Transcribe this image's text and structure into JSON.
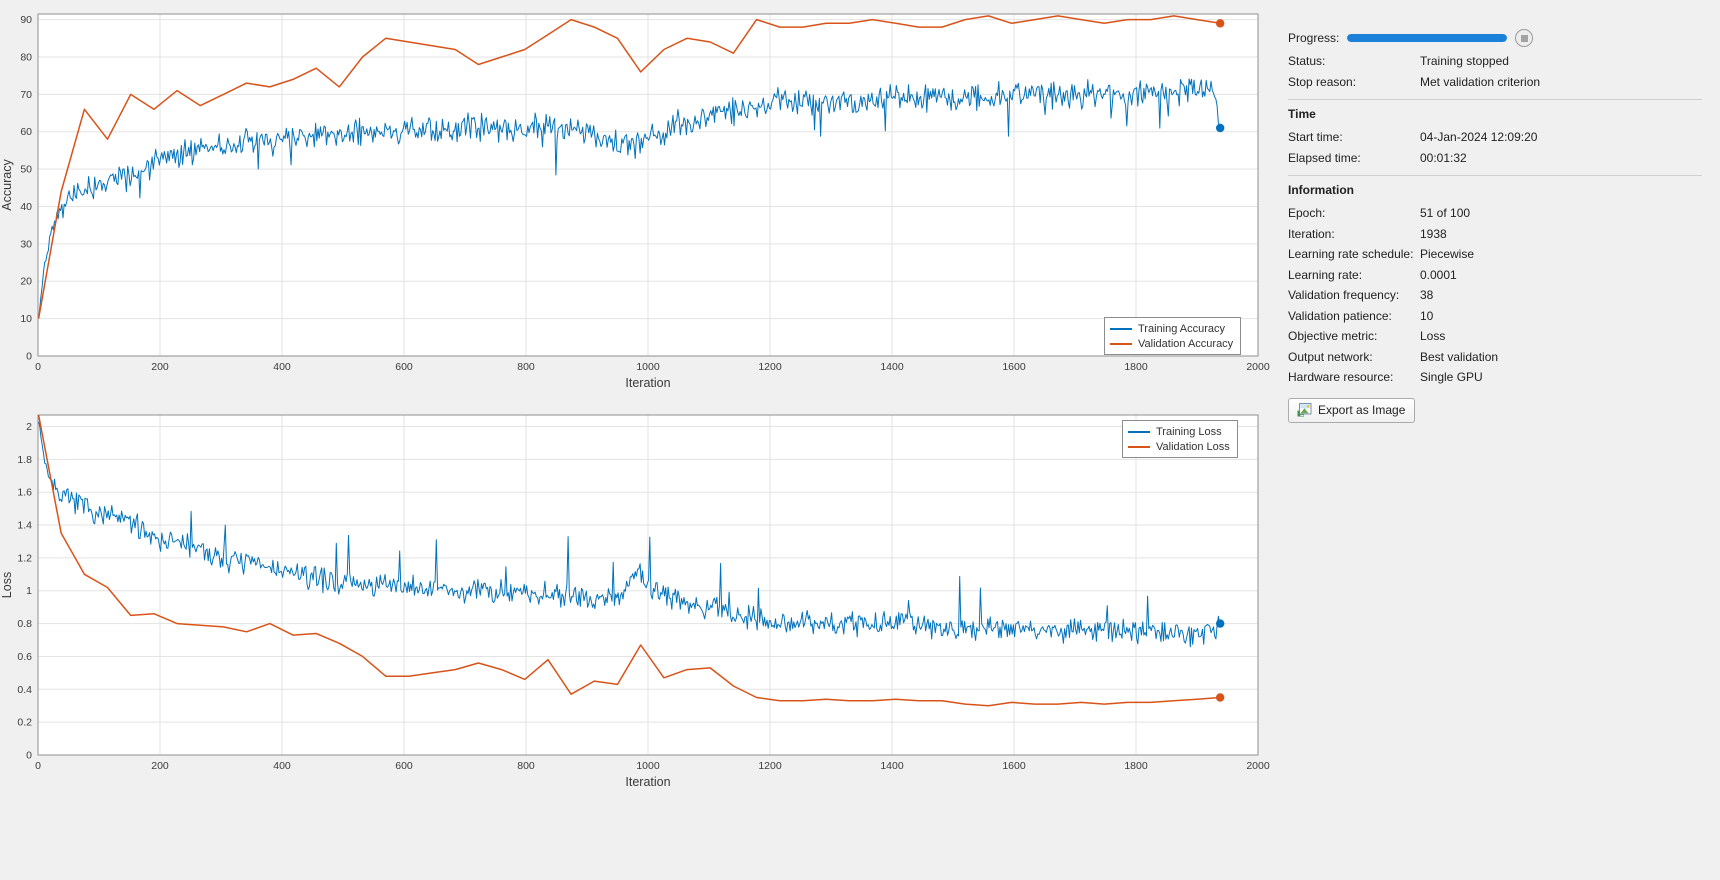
{
  "colors": {
    "training": "#0072BD",
    "validation": "#D95319",
    "progress": "#1a80d8",
    "grid": "#e3e3e3",
    "axis_box": "#8f8f8f",
    "tick_text": "#3c3c3c",
    "plot_bg": "#ffffff",
    "window_bg": "#f0f0f0"
  },
  "sidebar": {
    "progress_label": "Progress:",
    "progress_percent": 100,
    "rows_top": [
      {
        "label": "Status:",
        "value": "Training stopped"
      },
      {
        "label": "Stop reason:",
        "value": "Met validation criterion"
      }
    ],
    "time_section": {
      "title": "Time",
      "rows": [
        {
          "label": "Start time:",
          "value": "04-Jan-2024 12:09:20"
        },
        {
          "label": "Elapsed time:",
          "value": "00:01:32"
        }
      ]
    },
    "info_section": {
      "title": "Information",
      "rows": [
        {
          "label": "Epoch:",
          "value": "51 of 100"
        },
        {
          "label": "Iteration:",
          "value": "1938"
        },
        {
          "label": "Learning rate schedule:",
          "value": "Piecewise"
        },
        {
          "label": "Learning rate:",
          "value": "0.0001"
        },
        {
          "label": "Validation frequency:",
          "value": "38"
        },
        {
          "label": "Validation patience:",
          "value": "10"
        },
        {
          "label": "Objective metric:",
          "value": "Loss"
        },
        {
          "label": "Output network:",
          "value": "Best validation"
        },
        {
          "label": "Hardware resource:",
          "value": "Single GPU"
        }
      ]
    },
    "export_button": "Export as Image"
  },
  "chart_data": [
    {
      "type": "line",
      "title": "",
      "xlabel": "Iteration",
      "ylabel": "Accuracy",
      "xlim": [
        0,
        2000
      ],
      "ylim": [
        0,
        91.5
      ],
      "xticks": [
        0,
        200,
        400,
        600,
        800,
        1000,
        1200,
        1400,
        1600,
        1800,
        2000
      ],
      "yticks": [
        0,
        10,
        20,
        30,
        40,
        50,
        60,
        70,
        80,
        90
      ],
      "grid": true,
      "legend_position": "bottom-right",
      "series": [
        {
          "name": "Training Accuracy",
          "color": "#0072BD",
          "style": "noisy",
          "noise_amp": 4.3,
          "spike": -8,
          "seed": 42,
          "trend": [
            [
              1,
              10
            ],
            [
              10,
              24
            ],
            [
              25,
              36
            ],
            [
              50,
              42
            ],
            [
              75,
              44
            ],
            [
              100,
              46
            ],
            [
              150,
              48
            ],
            [
              200,
              52
            ],
            [
              250,
              55
            ],
            [
              300,
              56
            ],
            [
              350,
              57
            ],
            [
              400,
              58
            ],
            [
              450,
              59
            ],
            [
              500,
              60
            ],
            [
              600,
              60
            ],
            [
              700,
              61
            ],
            [
              800,
              61
            ],
            [
              850,
              62
            ],
            [
              900,
              60
            ],
            [
              950,
              57
            ],
            [
              1000,
              58
            ],
            [
              1050,
              62
            ],
            [
              1100,
              64
            ],
            [
              1150,
              66
            ],
            [
              1200,
              68
            ],
            [
              1300,
              68
            ],
            [
              1400,
              69
            ],
            [
              1500,
              69
            ],
            [
              1600,
              70
            ],
            [
              1700,
              70
            ],
            [
              1800,
              70
            ],
            [
              1900,
              71
            ],
            [
              1930,
              70
            ],
            [
              1938,
              61
            ]
          ],
          "final": [
            1938,
            61
          ]
        },
        {
          "name": "Validation Accuracy",
          "color": "#D95319",
          "style": "line",
          "points": [
            [
              1,
              10
            ],
            [
              38,
              44
            ],
            [
              76,
              66
            ],
            [
              114,
              58
            ],
            [
              152,
              70
            ],
            [
              190,
              66
            ],
            [
              228,
              71
            ],
            [
              266,
              67
            ],
            [
              304,
              70
            ],
            [
              342,
              73
            ],
            [
              380,
              72
            ],
            [
              418,
              74
            ],
            [
              456,
              77
            ],
            [
              494,
              72
            ],
            [
              532,
              80
            ],
            [
              570,
              85
            ],
            [
              608,
              84
            ],
            [
              646,
              83
            ],
            [
              684,
              82
            ],
            [
              722,
              78
            ],
            [
              760,
              80
            ],
            [
              798,
              82
            ],
            [
              836,
              86
            ],
            [
              874,
              90
            ],
            [
              912,
              88
            ],
            [
              950,
              85
            ],
            [
              988,
              76
            ],
            [
              1026,
              82
            ],
            [
              1064,
              85
            ],
            [
              1102,
              84
            ],
            [
              1140,
              81
            ],
            [
              1178,
              90
            ],
            [
              1216,
              88
            ],
            [
              1254,
              88
            ],
            [
              1292,
              89
            ],
            [
              1330,
              89
            ],
            [
              1368,
              90
            ],
            [
              1406,
              89
            ],
            [
              1444,
              88
            ],
            [
              1482,
              88
            ],
            [
              1520,
              90
            ],
            [
              1558,
              91
            ],
            [
              1596,
              89
            ],
            [
              1634,
              90
            ],
            [
              1672,
              91
            ],
            [
              1710,
              90
            ],
            [
              1748,
              89
            ],
            [
              1786,
              90
            ],
            [
              1824,
              90
            ],
            [
              1862,
              91
            ],
            [
              1900,
              90
            ],
            [
              1938,
              89
            ]
          ],
          "final": [
            1938,
            89
          ]
        }
      ]
    },
    {
      "type": "line",
      "title": "",
      "xlabel": "Iteration",
      "ylabel": "Loss",
      "xlim": [
        0,
        2000
      ],
      "ylim": [
        0,
        2.07
      ],
      "xticks": [
        0,
        200,
        400,
        600,
        800,
        1000,
        1200,
        1400,
        1600,
        1800,
        2000
      ],
      "yticks": [
        0,
        0.2,
        0.4,
        0.6,
        0.8,
        1,
        1.2,
        1.4,
        1.6,
        1.8,
        2
      ],
      "grid": true,
      "legend_position": "top-right",
      "series": [
        {
          "name": "Training Loss",
          "color": "#0072BD",
          "style": "noisy",
          "noise_amp": 0.085,
          "spike": 0.22,
          "seed": 7,
          "trend": [
            [
              1,
              2.05
            ],
            [
              10,
              1.8
            ],
            [
              25,
              1.62
            ],
            [
              50,
              1.55
            ],
            [
              100,
              1.47
            ],
            [
              150,
              1.42
            ],
            [
              200,
              1.32
            ],
            [
              250,
              1.27
            ],
            [
              300,
              1.2
            ],
            [
              350,
              1.17
            ],
            [
              400,
              1.12
            ],
            [
              450,
              1.08
            ],
            [
              500,
              1.05
            ],
            [
              600,
              1.02
            ],
            [
              700,
              1.0
            ],
            [
              800,
              1.0
            ],
            [
              850,
              0.98
            ],
            [
              900,
              0.96
            ],
            [
              950,
              0.95
            ],
            [
              985,
              1.12
            ],
            [
              1005,
              1.0
            ],
            [
              1050,
              0.95
            ],
            [
              1100,
              0.9
            ],
            [
              1150,
              0.85
            ],
            [
              1200,
              0.82
            ],
            [
              1300,
              0.8
            ],
            [
              1400,
              0.8
            ],
            [
              1500,
              0.78
            ],
            [
              1600,
              0.78
            ],
            [
              1700,
              0.76
            ],
            [
              1800,
              0.75
            ],
            [
              1900,
              0.74
            ],
            [
              1938,
              0.8
            ]
          ],
          "final": [
            1938,
            0.8
          ]
        },
        {
          "name": "Validation Loss",
          "color": "#D95319",
          "style": "line",
          "points": [
            [
              1,
              2.07
            ],
            [
              38,
              1.35
            ],
            [
              76,
              1.1
            ],
            [
              114,
              1.02
            ],
            [
              152,
              0.85
            ],
            [
              190,
              0.86
            ],
            [
              228,
              0.8
            ],
            [
              266,
              0.79
            ],
            [
              304,
              0.78
            ],
            [
              342,
              0.75
            ],
            [
              380,
              0.8
            ],
            [
              418,
              0.73
            ],
            [
              456,
              0.74
            ],
            [
              494,
              0.68
            ],
            [
              532,
              0.6
            ],
            [
              570,
              0.48
            ],
            [
              608,
              0.48
            ],
            [
              646,
              0.5
            ],
            [
              684,
              0.52
            ],
            [
              722,
              0.56
            ],
            [
              760,
              0.52
            ],
            [
              798,
              0.46
            ],
            [
              836,
              0.58
            ],
            [
              874,
              0.37
            ],
            [
              912,
              0.45
            ],
            [
              950,
              0.43
            ],
            [
              988,
              0.67
            ],
            [
              1026,
              0.47
            ],
            [
              1064,
              0.52
            ],
            [
              1102,
              0.53
            ],
            [
              1140,
              0.42
            ],
            [
              1178,
              0.35
            ],
            [
              1216,
              0.33
            ],
            [
              1254,
              0.33
            ],
            [
              1292,
              0.34
            ],
            [
              1330,
              0.33
            ],
            [
              1368,
              0.33
            ],
            [
              1406,
              0.34
            ],
            [
              1444,
              0.33
            ],
            [
              1482,
              0.33
            ],
            [
              1520,
              0.31
            ],
            [
              1558,
              0.3
            ],
            [
              1596,
              0.32
            ],
            [
              1634,
              0.31
            ],
            [
              1672,
              0.31
            ],
            [
              1710,
              0.32
            ],
            [
              1748,
              0.31
            ],
            [
              1786,
              0.32
            ],
            [
              1824,
              0.32
            ],
            [
              1862,
              0.33
            ],
            [
              1900,
              0.34
            ],
            [
              1938,
              0.35
            ]
          ],
          "final": [
            1938,
            0.35
          ]
        }
      ]
    }
  ]
}
